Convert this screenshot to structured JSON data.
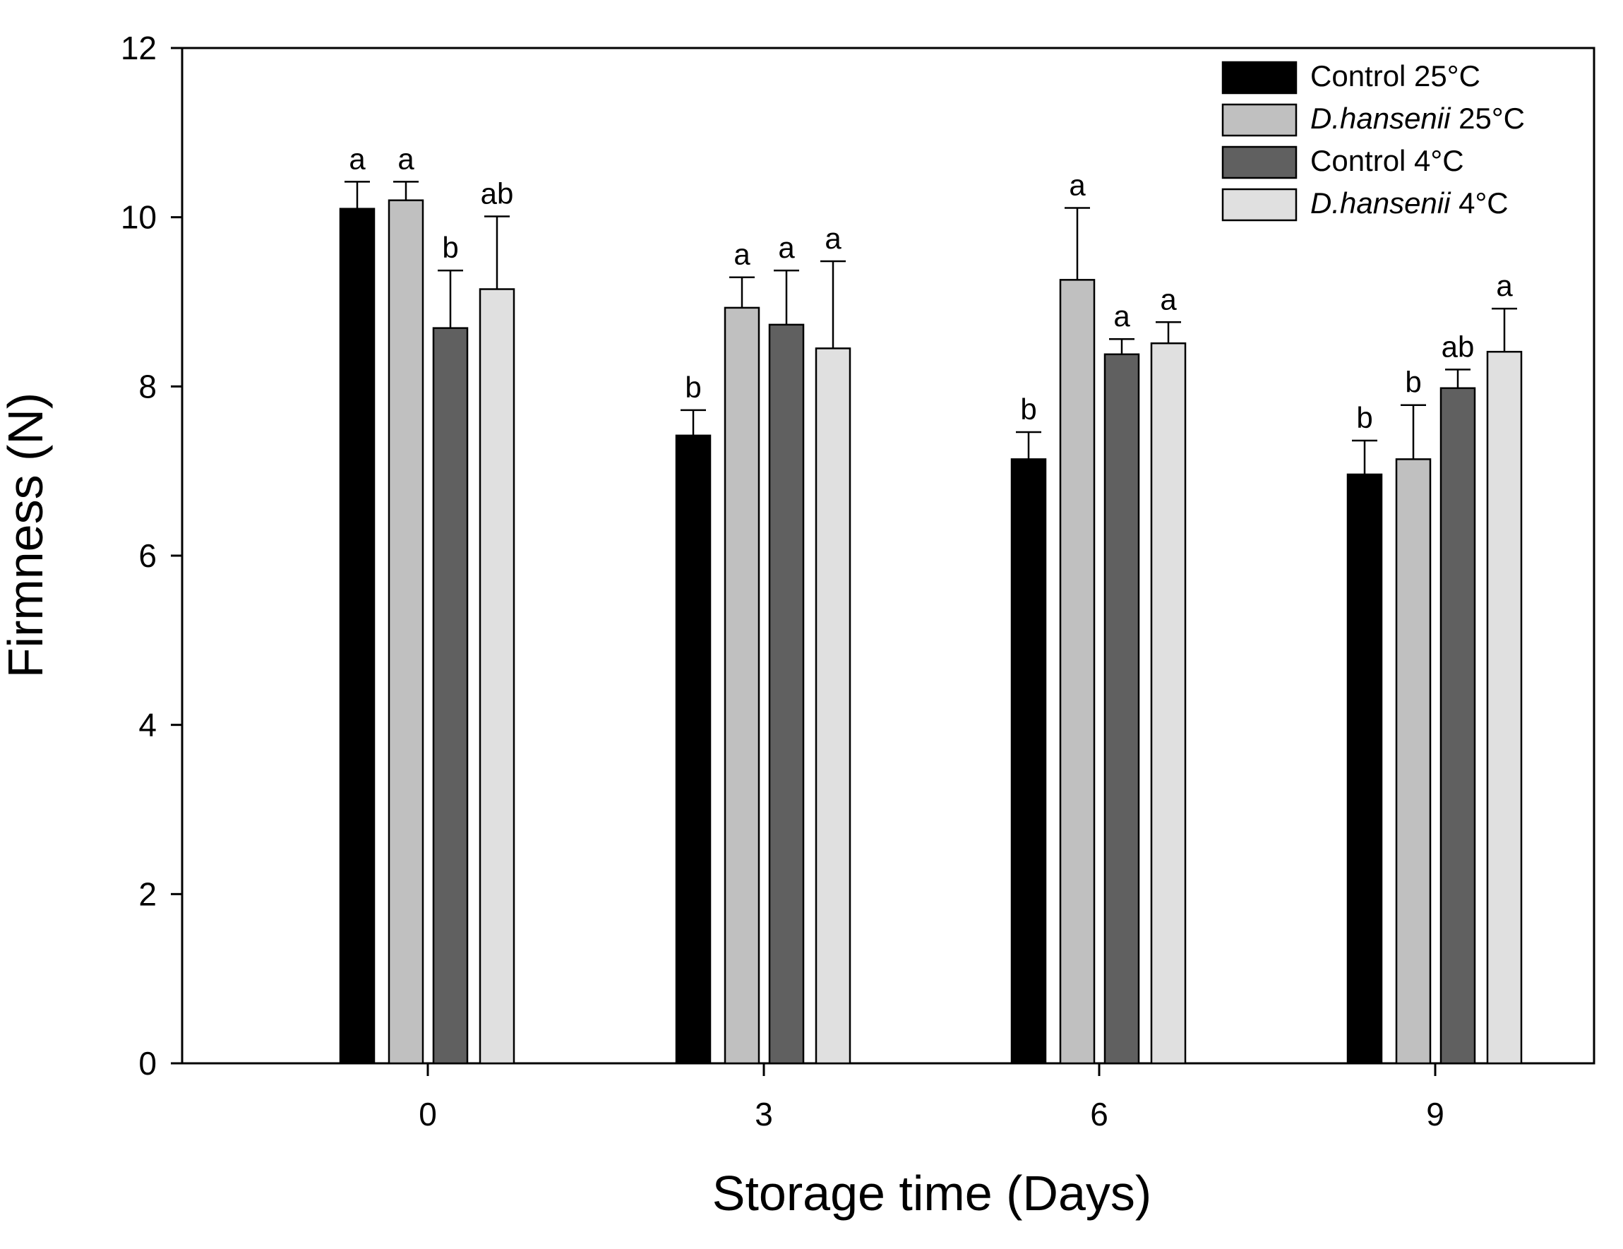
{
  "chart_data": {
    "type": "bar",
    "title": "",
    "xlabel": "Storage time (Days)",
    "ylabel": "Firmness (N)",
    "ylim": [
      0,
      12
    ],
    "yticks": [
      0,
      2,
      4,
      6,
      8,
      10,
      12
    ],
    "categories": [
      "0",
      "3",
      "6",
      "9"
    ],
    "grid": false,
    "legend_position": "top-right",
    "series": [
      {
        "name": "Control 25°C",
        "legend_parts": [
          {
            "text": "Control 25°C",
            "italic": false
          }
        ],
        "color": "#000000",
        "values": [
          10.1,
          7.42,
          7.14,
          6.96
        ],
        "errors": [
          0.32,
          0.3,
          0.32,
          0.4
        ],
        "letters": [
          "a",
          "b",
          "b",
          "b"
        ]
      },
      {
        "name": "D.hansenii 25°C",
        "legend_parts": [
          {
            "text": "D.hansenii",
            "italic": true
          },
          {
            "text": " 25°C",
            "italic": false
          }
        ],
        "color": "#c0c0c0",
        "values": [
          10.2,
          8.93,
          9.26,
          7.14
        ],
        "errors": [
          0.22,
          0.36,
          0.85,
          0.64
        ],
        "letters": [
          "a",
          "a",
          "a",
          "b"
        ]
      },
      {
        "name": "Control 4°C",
        "legend_parts": [
          {
            "text": "Control 4°C",
            "italic": false
          }
        ],
        "color": "#606060",
        "values": [
          8.69,
          8.73,
          8.38,
          7.98
        ],
        "errors": [
          0.68,
          0.64,
          0.18,
          0.22
        ],
        "letters": [
          "b",
          "a",
          "a",
          "ab"
        ]
      },
      {
        "name": "D.hansenii 4°C",
        "legend_parts": [
          {
            "text": "D.hansenii",
            "italic": true
          },
          {
            "text": " 4°C",
            "italic": false
          }
        ],
        "color": "#e0e0e0",
        "values": [
          9.15,
          8.45,
          8.51,
          8.41
        ],
        "errors": [
          0.86,
          1.03,
          0.25,
          0.51
        ],
        "letters": [
          "ab",
          "a",
          "a",
          "a"
        ]
      }
    ]
  }
}
